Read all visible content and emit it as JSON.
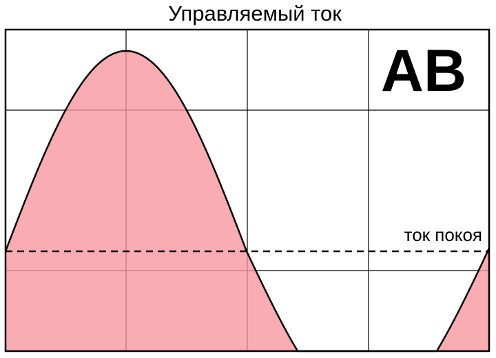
{
  "title": "Управляемый ток",
  "mode_label": "AB",
  "bias_label": "ток покоя"
}
